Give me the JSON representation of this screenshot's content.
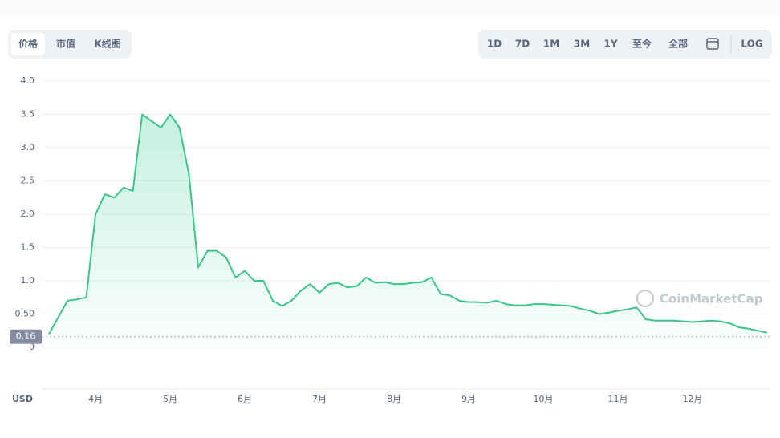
{
  "controls": {
    "tabs": [
      "价格",
      "市值",
      "K线图"
    ],
    "ranges": [
      "1D",
      "7D",
      "1M",
      "3M",
      "1Y",
      "至今",
      "全部"
    ],
    "log_button": "LOG",
    "watermark": "CoinMarketCap"
  },
  "chart_data": {
    "type": "line",
    "y_label": "USD",
    "categories": [
      null,
      null,
      null,
      null,
      null,
      "4月",
      null,
      null,
      null,
      null,
      null,
      null,
      null,
      "5月",
      null,
      null,
      null,
      null,
      null,
      null,
      null,
      "6月",
      null,
      null,
      null,
      null,
      null,
      null,
      null,
      "7月",
      null,
      null,
      null,
      null,
      null,
      null,
      null,
      "8月",
      null,
      null,
      null,
      null,
      null,
      null,
      null,
      "9月",
      null,
      null,
      null,
      null,
      null,
      null,
      null,
      "10月",
      null,
      null,
      null,
      null,
      null,
      null,
      null,
      "11月",
      null,
      null,
      null,
      null,
      null,
      null,
      null,
      "12月",
      null,
      null,
      null,
      null,
      null,
      null,
      null,
      null
    ],
    "values": [
      0.2,
      0.45,
      0.7,
      0.72,
      0.75,
      2.0,
      2.3,
      2.25,
      2.4,
      2.35,
      3.5,
      3.4,
      3.3,
      3.5,
      3.3,
      2.6,
      1.2,
      1.45,
      1.45,
      1.35,
      1.05,
      1.15,
      1.0,
      1.0,
      0.7,
      0.62,
      0.7,
      0.85,
      0.95,
      0.82,
      0.95,
      0.97,
      0.9,
      0.92,
      1.05,
      0.97,
      0.98,
      0.95,
      0.95,
      0.97,
      0.98,
      1.05,
      0.8,
      0.78,
      0.7,
      0.68,
      0.68,
      0.67,
      0.7,
      0.65,
      0.63,
      0.63,
      0.65,
      0.65,
      0.64,
      0.63,
      0.62,
      0.58,
      0.55,
      0.5,
      0.52,
      0.55,
      0.57,
      0.6,
      0.42,
      0.4,
      0.4,
      0.4,
      0.39,
      0.38,
      0.39,
      0.4,
      0.39,
      0.36,
      0.3,
      0.28,
      0.25,
      0.22
    ],
    "color": "#3cc48a",
    "ylim": [
      0,
      4
    ],
    "yticks": [
      0,
      {
        "value": 0.5,
        "label": "0.50"
      },
      {
        "value": 1,
        "label": "1.0"
      },
      {
        "value": 1.5,
        "label": "1.5"
      },
      {
        "value": 2,
        "label": "2.0"
      },
      {
        "value": 2.5,
        "label": "2.5"
      },
      {
        "value": 3,
        "label": "3.0"
      },
      {
        "value": 3.5,
        "label": "3.5"
      },
      {
        "value": 4,
        "label": "4.0"
      }
    ],
    "current_price": 0.16,
    "grid": true
  }
}
